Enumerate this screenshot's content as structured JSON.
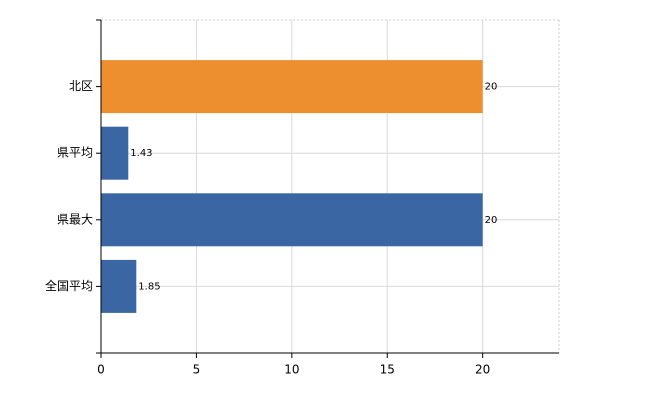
{
  "chart_data": {
    "type": "bar",
    "orientation": "horizontal",
    "categories": [
      "北区",
      "県平均",
      "県最大",
      "全国平均"
    ],
    "values": [
      20,
      1.43,
      20,
      1.85
    ],
    "colors": [
      "#ee8f2f",
      "#3a67a4",
      "#3a67a4",
      "#3a67a4"
    ],
    "xlim": [
      0,
      24
    ],
    "xticks": [
      0,
      5,
      10,
      15,
      20
    ],
    "grid": true
  }
}
